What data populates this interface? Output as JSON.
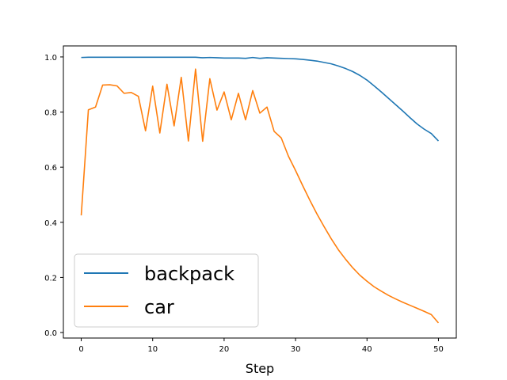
{
  "chart_data": {
    "type": "line",
    "xlabel": "Step",
    "ylabel": "",
    "xlim": [
      -2.5,
      52.5
    ],
    "ylim": [
      -0.02,
      1.04
    ],
    "xticks": [
      0,
      10,
      20,
      30,
      40,
      50
    ],
    "yticks": [
      0.0,
      0.2,
      0.4,
      0.6,
      0.8,
      1.0
    ],
    "xtick_labels": [
      "0",
      "10",
      "20",
      "30",
      "40",
      "50"
    ],
    "ytick_labels": [
      "0.0",
      "0.2",
      "0.4",
      "0.6",
      "0.8",
      "1.0"
    ],
    "legend_position": "bottom-left",
    "grid": false,
    "x": [
      0,
      1,
      2,
      3,
      4,
      5,
      6,
      7,
      8,
      9,
      10,
      11,
      12,
      13,
      14,
      15,
      16,
      17,
      18,
      19,
      20,
      21,
      22,
      23,
      24,
      25,
      26,
      27,
      28,
      29,
      30,
      31,
      32,
      33,
      34,
      35,
      36,
      37,
      38,
      39,
      40,
      41,
      42,
      43,
      44,
      45,
      46,
      47,
      48,
      49,
      50
    ],
    "series": [
      {
        "name": "backpack",
        "color": "#1f77b4",
        "values": [
          0.998,
          0.999,
          0.999,
          0.999,
          0.999,
          0.999,
          0.999,
          0.999,
          0.999,
          0.999,
          0.999,
          0.999,
          0.999,
          0.999,
          0.999,
          0.999,
          0.999,
          0.997,
          0.998,
          0.997,
          0.996,
          0.996,
          0.996,
          0.995,
          0.998,
          0.995,
          0.997,
          0.996,
          0.995,
          0.994,
          0.993,
          0.991,
          0.988,
          0.985,
          0.98,
          0.975,
          0.967,
          0.958,
          0.947,
          0.933,
          0.916,
          0.895,
          0.873,
          0.85,
          0.827,
          0.804,
          0.78,
          0.757,
          0.738,
          0.722,
          0.695
        ]
      },
      {
        "name": "car",
        "color": "#ff7f0e",
        "values": [
          0.425,
          0.808,
          0.818,
          0.898,
          0.899,
          0.895,
          0.868,
          0.871,
          0.857,
          0.732,
          0.894,
          0.724,
          0.901,
          0.75,
          0.926,
          0.695,
          0.956,
          0.694,
          0.921,
          0.807,
          0.873,
          0.772,
          0.868,
          0.772,
          0.878,
          0.796,
          0.818,
          0.73,
          0.706,
          0.64,
          0.588,
          0.533,
          0.48,
          0.43,
          0.384,
          0.34,
          0.3,
          0.266,
          0.235,
          0.208,
          0.186,
          0.166,
          0.15,
          0.135,
          0.122,
          0.11,
          0.099,
          0.088,
          0.077,
          0.065,
          0.035
        ]
      }
    ]
  }
}
